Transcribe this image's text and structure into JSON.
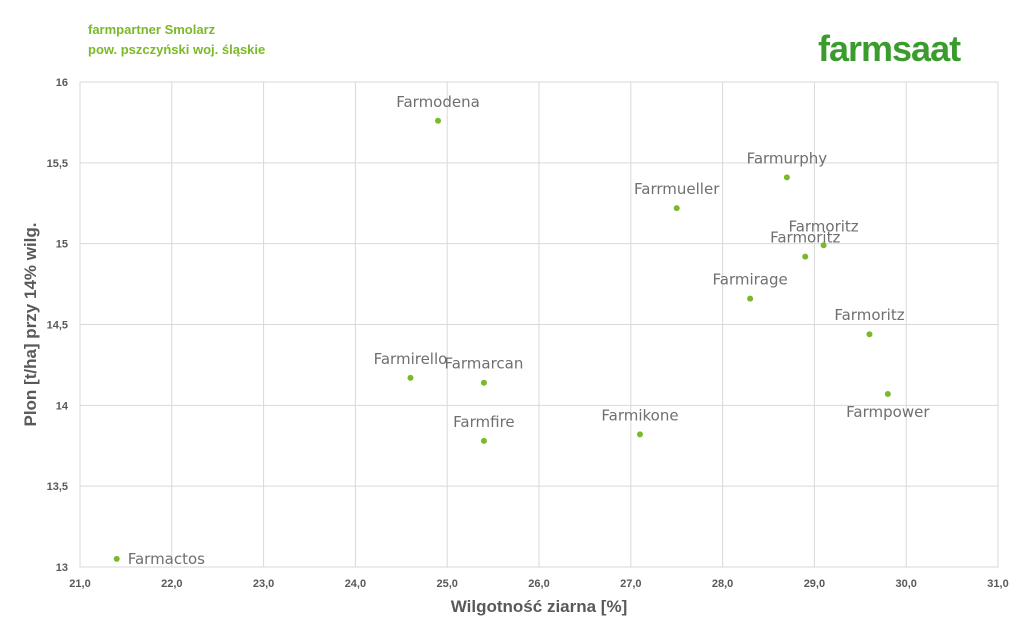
{
  "header": {
    "line1": "farmpartner Smolarz",
    "line2": "pow. pszczyński woj. śląskie",
    "logo": "farmsaat"
  },
  "colors": {
    "accent": "#7ab929",
    "logo": "#3a9c2c",
    "grid": "#d9d9d9",
    "text": "#595959"
  },
  "chart_data": {
    "type": "scatter",
    "xlabel": "Wilgotność ziarna [%]",
    "ylabel": "Plon [t/ha] przy 14% wilg.",
    "xlim": [
      21,
      31
    ],
    "ylim": [
      13,
      16
    ],
    "x_ticks": [
      "21,0",
      "22,0",
      "23,0",
      "24,0",
      "25,0",
      "26,0",
      "27,0",
      "28,0",
      "29,0",
      "30,0",
      "31,0"
    ],
    "y_ticks": [
      "13",
      "13,5",
      "14",
      "14,5",
      "15",
      "15,5",
      "16"
    ],
    "grid": true,
    "points": [
      {
        "label": "Farmodena",
        "x": 24.9,
        "y": 15.76,
        "label_pos": "above"
      },
      {
        "label": "Farmurphy",
        "x": 28.7,
        "y": 15.41,
        "label_pos": "above"
      },
      {
        "label": "Farrmueller",
        "x": 27.5,
        "y": 15.22,
        "label_pos": "above"
      },
      {
        "label": "Farmoritz",
        "x": 29.1,
        "y": 14.99,
        "label_pos": "above"
      },
      {
        "label": "Farmoritz",
        "x": 28.9,
        "y": 14.92,
        "label_pos": "above"
      },
      {
        "label": "Farmirage",
        "x": 28.3,
        "y": 14.66,
        "label_pos": "above"
      },
      {
        "label": "Farmoritz",
        "x": 29.6,
        "y": 14.44,
        "label_pos": "above"
      },
      {
        "label": "Farmirello",
        "x": 24.6,
        "y": 14.17,
        "label_pos": "above"
      },
      {
        "label": "Farmarcan",
        "x": 25.4,
        "y": 14.14,
        "label_pos": "above"
      },
      {
        "label": "Farmpower",
        "x": 29.8,
        "y": 14.07,
        "label_pos": "below"
      },
      {
        "label": "Farmfire",
        "x": 25.4,
        "y": 13.78,
        "label_pos": "above"
      },
      {
        "label": "Farmikone",
        "x": 27.1,
        "y": 13.82,
        "label_pos": "above"
      },
      {
        "label": "Farmactos",
        "x": 21.4,
        "y": 13.05,
        "label_pos": "right"
      }
    ]
  }
}
